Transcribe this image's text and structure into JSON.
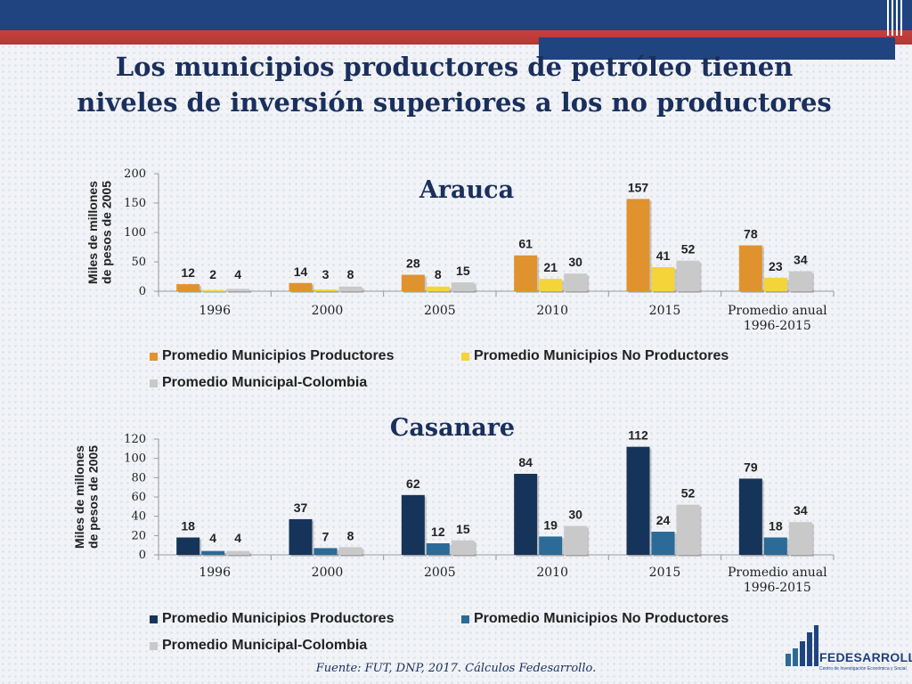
{
  "slide": {
    "title": "Los municipios productores de petróleo tienen niveles de inversión superiores a los no productores",
    "source": "Fuente: FUT, DNP, 2017. Cálculos Fedesarrollo.",
    "logo": {
      "name": "FEDESARROLLO",
      "subtitle": "Centro de Investigación Económica y Social"
    }
  },
  "colors": {
    "header_blue": "#1f4480",
    "header_red": "#c5413d",
    "title_navy": "#1a2f5c",
    "arauca_producers": "#e0922f",
    "arauca_non_producers": "#f5d43a",
    "colombia_gray": "#c9c9c9",
    "casanare_producers": "#16345a",
    "casanare_non_producers": "#2c6a97"
  },
  "chart_data": [
    {
      "type": "bar",
      "title": "Arauca",
      "ylabel": "Miles de millones de pesos de 2005",
      "ylim": [
        0,
        200
      ],
      "yticks": [
        0,
        50,
        100,
        150,
        200
      ],
      "categories": [
        "1996",
        "2000",
        "2005",
        "2010",
        "2015",
        "Promedio anual 1996-2015"
      ],
      "series": [
        {
          "name": "Promedio Municipios Productores",
          "values": [
            12,
            14,
            28,
            61,
            157,
            78
          ],
          "color": "#e0922f"
        },
        {
          "name": "Promedio Municipios No Productores",
          "values": [
            2,
            3,
            8,
            21,
            41,
            23
          ],
          "color": "#f5d43a"
        },
        {
          "name": "Promedio Municipal-Colombia",
          "values": [
            4,
            8,
            15,
            30,
            52,
            34
          ],
          "color": "#c9c9c9"
        }
      ],
      "legend": "bottom"
    },
    {
      "type": "bar",
      "title": "Casanare",
      "ylabel": "Miles de millones de pesos de 2005",
      "ylim": [
        0,
        120
      ],
      "yticks": [
        0,
        20,
        40,
        60,
        80,
        100,
        120
      ],
      "categories": [
        "1996",
        "2000",
        "2005",
        "2010",
        "2015",
        "Promedio anual 1996-2015"
      ],
      "series": [
        {
          "name": "Promedio Municipios Productores",
          "values": [
            18,
            37,
            62,
            84,
            112,
            79
          ],
          "color": "#16345a"
        },
        {
          "name": "Promedio Municipios No Productores",
          "values": [
            4,
            7,
            12,
            19,
            24,
            18
          ],
          "color": "#2c6a97"
        },
        {
          "name": "Promedio Municipal-Colombia",
          "values": [
            4,
            8,
            15,
            30,
            52,
            34
          ],
          "color": "#c9c9c9"
        }
      ],
      "legend": "bottom"
    }
  ]
}
